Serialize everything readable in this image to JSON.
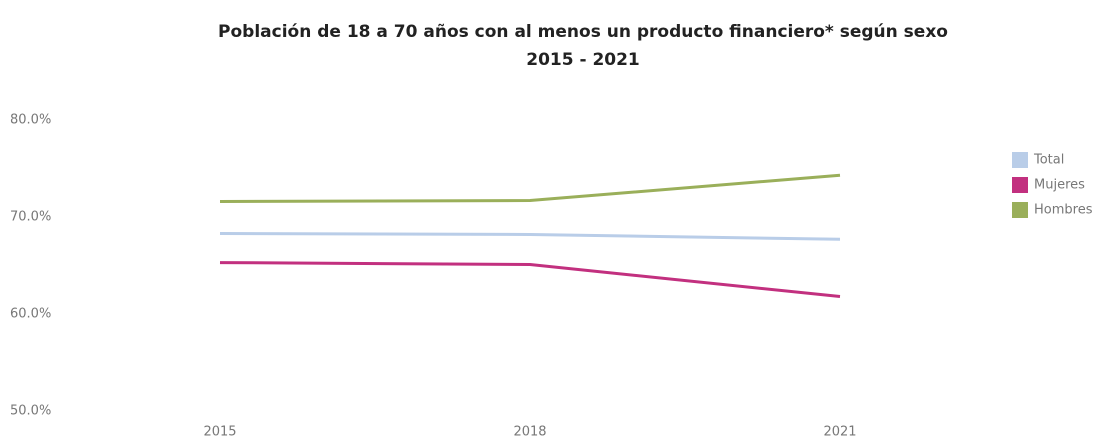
{
  "chart_data": {
    "type": "line",
    "title": "Población de 18 a 70 años con al menos un producto financiero* según sexo",
    "subtitle": "2015 - 2021",
    "categories": [
      "2015",
      "2018",
      "2021"
    ],
    "series": [
      {
        "name": "Total",
        "color": "#b9cde8",
        "values": [
          68.3,
          68.2,
          67.7
        ]
      },
      {
        "name": "Mujeres",
        "color": "#c2307f",
        "values": [
          65.3,
          65.1,
          61.8
        ]
      },
      {
        "name": "Hombres",
        "color": "#9aaf5a",
        "values": [
          71.6,
          71.7,
          74.3
        ]
      }
    ],
    "ylim": [
      50,
      80
    ],
    "yticks": [
      {
        "value": 50,
        "label": "50.0%"
      },
      {
        "value": 60,
        "label": "60.0%"
      },
      {
        "value": 70,
        "label": "70.0%"
      },
      {
        "value": 80,
        "label": "80.0%"
      }
    ],
    "grid": false,
    "legend": "right"
  }
}
